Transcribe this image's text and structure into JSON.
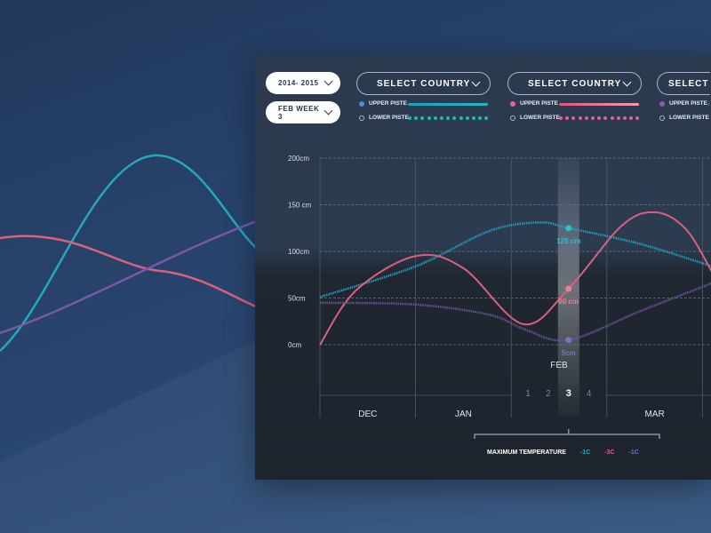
{
  "filters": {
    "season": "2014- 2015",
    "week": "FEB WEEK 3"
  },
  "countries": [
    {
      "label": "SELECT COUNTRY",
      "upper": "UPPER PISTE",
      "lower": "LOWER PISTE",
      "upper_color": "#1f9fc4",
      "lower_color": "#1fb6c0",
      "upper_dot": "#4a8fd6"
    },
    {
      "label": "SELECT COUNTRY",
      "upper": "UPPER PISTE",
      "lower": "LOWER PISTE",
      "upper_color": "#e0567a",
      "lower_color": "#e8608a",
      "upper_dot": "#e06a8c"
    },
    {
      "label": "SELECT",
      "upper": "UPPER PISTE",
      "lower": "LOWER PISTE",
      "upper_color": "#8a5bb0",
      "lower_color": "#8a5bb0",
      "upper_dot": "#8a5bb0"
    }
  ],
  "chart_data": {
    "type": "line",
    "x_unit": "weeks from start of Dec",
    "months": [
      "DEC",
      "JAN",
      "FEB",
      "MAR"
    ],
    "feb_weeks": [
      "1",
      "2",
      "3",
      "4"
    ],
    "selected_week": "3",
    "y_ticks": [
      "0cm",
      "50cm",
      "100cm",
      "150 cm",
      "200cm"
    ],
    "y_tick_values": [
      0,
      50,
      100,
      150,
      200
    ],
    "ylim": [
      0,
      200
    ],
    "grid": true,
    "series": [
      {
        "color": "#1e9fbf",
        "style": "dotted",
        "points": [
          [
            0,
            51
          ],
          [
            4,
            84
          ],
          [
            7.1,
            122
          ],
          [
            9.2,
            131
          ],
          [
            10.4,
            125
          ],
          [
            13.4,
            108
          ],
          [
            16.4,
            84
          ]
        ]
      },
      {
        "color": "#d9607f",
        "style": "solid",
        "points": [
          [
            0,
            0
          ],
          [
            1.5,
            58
          ],
          [
            4,
            95
          ],
          [
            6,
            82
          ],
          [
            8.5,
            22
          ],
          [
            10.4,
            60
          ],
          [
            12.6,
            127
          ],
          [
            14,
            142
          ],
          [
            15.3,
            124
          ],
          [
            16.4,
            78
          ]
        ]
      },
      {
        "color": "#6e4f9a",
        "style": "dotted",
        "points": [
          [
            0,
            45
          ],
          [
            4,
            43
          ],
          [
            7.1,
            32
          ],
          [
            8.6,
            16
          ],
          [
            10.4,
            5
          ],
          [
            13.4,
            36
          ],
          [
            16.4,
            66
          ]
        ]
      }
    ],
    "highlight_labels": [
      {
        "text": "125 cm",
        "value": 125,
        "color": "#2ac3c8"
      },
      {
        "text": "60 cm",
        "value": 60,
        "color": "#f07d9c"
      },
      {
        "text": "5cm",
        "value": 5,
        "color": "#7b74b8"
      }
    ]
  },
  "temperature": {
    "label": "MAXIMUM TEMPERATURE",
    "values": [
      {
        "text": "-1C",
        "color": "#22b5c4"
      },
      {
        "text": "-3C",
        "color": "#e0608a"
      },
      {
        "text": "-1C",
        "color": "#7a70c0"
      }
    ]
  }
}
